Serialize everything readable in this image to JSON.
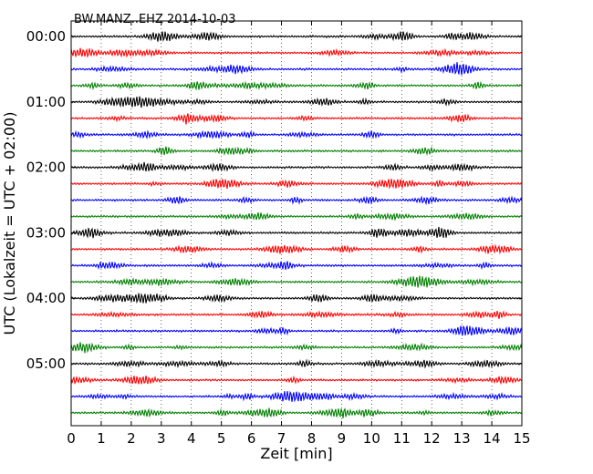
{
  "chart_data": {
    "type": "line",
    "title": "BW.MANZ..EHZ 2014-10-03",
    "xlabel": "Zeit  [min]",
    "ylabel": "UTC (Lokalzeit = UTC + 02:00)",
    "xlim": [
      0,
      15
    ],
    "x_ticks": [
      "0",
      "1",
      "2",
      "3",
      "4",
      "5",
      "6",
      "7",
      "8",
      "9",
      "10",
      "11",
      "12",
      "13",
      "14",
      "15"
    ],
    "y_ticks": [
      "00:00",
      "01:00",
      "02:00",
      "03:00",
      "04:00",
      "05:00"
    ],
    "minutes_per_trace": 15,
    "grid": "vertical dotted",
    "trace_colors": [
      "#000000",
      "#ff0000",
      "#0000ff",
      "#008000"
    ],
    "trace_count": 24
  }
}
